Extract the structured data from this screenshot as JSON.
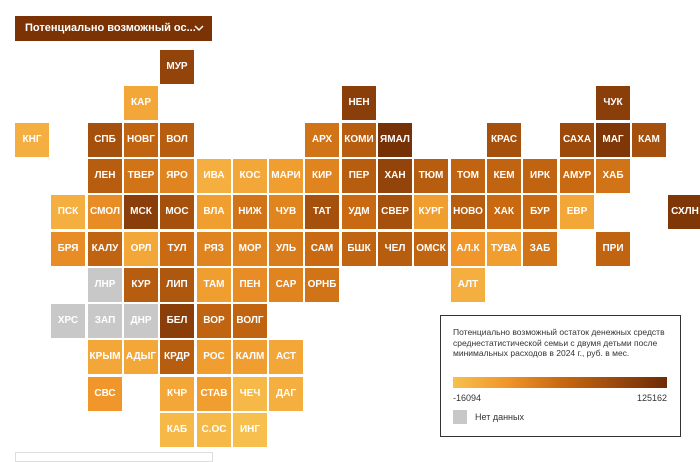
{
  "dropdown": {
    "label": "Потенциально возможный ос...",
    "icon": "chevron-down-icon"
  },
  "colors": {
    "low": "#f7c04e",
    "high": "#6e2b06",
    "nodata": "#c8c8c8"
  },
  "legend": {
    "title": "Потенциально возможный остаток денежных средств среднестатистической семьи с двумя детьми после минимальных расходов в 2024 г., руб. в мес.",
    "min_label": "-16094",
    "max_label": "125162",
    "min": -16094,
    "max": 125162,
    "nodata_label": "Нет данных"
  },
  "map_data": {
    "columns": 19,
    "rows": 11,
    "regions": [
      {
        "label": "МУР",
        "col": 4,
        "row": 0,
        "level": 0.8
      },
      {
        "label": "КАР",
        "col": 3,
        "row": 1,
        "level": 0.15
      },
      {
        "label": "НЕН",
        "col": 9,
        "row": 1,
        "level": 0.85
      },
      {
        "label": "ЧУК",
        "col": 16,
        "row": 1,
        "level": 0.85
      },
      {
        "label": "КНГ",
        "col": 0,
        "row": 2,
        "level": 0.1
      },
      {
        "label": "СПБ",
        "col": 2,
        "row": 2,
        "level": 0.7
      },
      {
        "label": "НОВГ",
        "col": 3,
        "row": 2,
        "level": 0.55
      },
      {
        "label": "ВОЛ",
        "col": 4,
        "row": 2,
        "level": 0.6
      },
      {
        "label": "АРХ",
        "col": 8,
        "row": 2,
        "level": 0.45
      },
      {
        "label": "КОМИ",
        "col": 9,
        "row": 2,
        "level": 0.6
      },
      {
        "label": "ЯМАЛ",
        "col": 10,
        "row": 2,
        "level": 0.95
      },
      {
        "label": "КРАС",
        "col": 13,
        "row": 2,
        "level": 0.7
      },
      {
        "label": "САХА",
        "col": 15,
        "row": 2,
        "level": 0.75
      },
      {
        "label": "МАГ",
        "col": 16,
        "row": 2,
        "level": 0.9
      },
      {
        "label": "КАМ",
        "col": 17,
        "row": 2,
        "level": 0.7
      },
      {
        "label": "ЛЕН",
        "col": 2,
        "row": 3,
        "level": 0.6
      },
      {
        "label": "ТВЕР",
        "col": 3,
        "row": 3,
        "level": 0.45
      },
      {
        "label": "ЯРО",
        "col": 4,
        "row": 3,
        "level": 0.35
      },
      {
        "label": "ИВА",
        "col": 5,
        "row": 3,
        "level": 0.1
      },
      {
        "label": "КОС",
        "col": 6,
        "row": 3,
        "level": 0.15
      },
      {
        "label": "МАРИ",
        "col": 7,
        "row": 3,
        "level": 0.2
      },
      {
        "label": "КИР",
        "col": 8,
        "row": 3,
        "level": 0.35
      },
      {
        "label": "ПЕР",
        "col": 9,
        "row": 3,
        "level": 0.6
      },
      {
        "label": "ХАН",
        "col": 10,
        "row": 3,
        "level": 0.8
      },
      {
        "label": "ТЮМ",
        "col": 11,
        "row": 3,
        "level": 0.6
      },
      {
        "label": "ТОМ",
        "col": 12,
        "row": 3,
        "level": 0.55
      },
      {
        "label": "КЕМ",
        "col": 13,
        "row": 3,
        "level": 0.55
      },
      {
        "label": "ИРК",
        "col": 14,
        "row": 3,
        "level": 0.55
      },
      {
        "label": "АМУР",
        "col": 15,
        "row": 3,
        "level": 0.5
      },
      {
        "label": "ХАБ",
        "col": 16,
        "row": 3,
        "level": 0.45
      },
      {
        "label": "ПСК",
        "col": 1,
        "row": 4,
        "level": 0.1
      },
      {
        "label": "СМОЛ",
        "col": 2,
        "row": 4,
        "level": 0.3
      },
      {
        "label": "МСК",
        "col": 3,
        "row": 4,
        "level": 0.85
      },
      {
        "label": "МОС",
        "col": 4,
        "row": 4,
        "level": 0.7
      },
      {
        "label": "ВЛА",
        "col": 5,
        "row": 4,
        "level": 0.2
      },
      {
        "label": "НИЖ",
        "col": 6,
        "row": 4,
        "level": 0.45
      },
      {
        "label": "ЧУВ",
        "col": 7,
        "row": 4,
        "level": 0.35
      },
      {
        "label": "ТАТ",
        "col": 8,
        "row": 4,
        "level": 0.7
      },
      {
        "label": "УДМ",
        "col": 9,
        "row": 4,
        "level": 0.5
      },
      {
        "label": "СВЕР",
        "col": 10,
        "row": 4,
        "level": 0.7
      },
      {
        "label": "КУРГ",
        "col": 11,
        "row": 4,
        "level": 0.2
      },
      {
        "label": "НОВО",
        "col": 12,
        "row": 4,
        "level": 0.6
      },
      {
        "label": "ХАК",
        "col": 13,
        "row": 4,
        "level": 0.5
      },
      {
        "label": "БУР",
        "col": 14,
        "row": 4,
        "level": 0.5
      },
      {
        "label": "ЕВР",
        "col": 15,
        "row": 4,
        "level": 0.15
      },
      {
        "label": "СХЛН",
        "col": 18,
        "row": 4,
        "level": 0.9
      },
      {
        "label": "БРЯ",
        "col": 1,
        "row": 5,
        "level": 0.3
      },
      {
        "label": "КАЛУ",
        "col": 2,
        "row": 5,
        "level": 0.55
      },
      {
        "label": "ОРЛ",
        "col": 3,
        "row": 5,
        "level": 0.15
      },
      {
        "label": "ТУЛ",
        "col": 4,
        "row": 5,
        "level": 0.5
      },
      {
        "label": "РЯЗ",
        "col": 5,
        "row": 5,
        "level": 0.35
      },
      {
        "label": "МОР",
        "col": 6,
        "row": 5,
        "level": 0.35
      },
      {
        "label": "УЛЬ",
        "col": 7,
        "row": 5,
        "level": 0.4
      },
      {
        "label": "САМ",
        "col": 8,
        "row": 5,
        "level": 0.5
      },
      {
        "label": "БШК",
        "col": 9,
        "row": 5,
        "level": 0.55
      },
      {
        "label": "ЧЕЛ",
        "col": 10,
        "row": 5,
        "level": 0.6
      },
      {
        "label": "ОМСК",
        "col": 11,
        "row": 5,
        "level": 0.55
      },
      {
        "label": "АЛ.К",
        "col": 12,
        "row": 5,
        "level": 0.25
      },
      {
        "label": "ТУВА",
        "col": 13,
        "row": 5,
        "level": 0.2
      },
      {
        "label": "ЗАБ",
        "col": 14,
        "row": 5,
        "level": 0.45
      },
      {
        "label": "ПРИ",
        "col": 16,
        "row": 5,
        "level": 0.55
      },
      {
        "label": "ЛНР",
        "col": 2,
        "row": 6,
        "nodata": true
      },
      {
        "label": "КУР",
        "col": 3,
        "row": 6,
        "level": 0.6
      },
      {
        "label": "ЛИП",
        "col": 4,
        "row": 6,
        "level": 0.65
      },
      {
        "label": "ТАМ",
        "col": 5,
        "row": 6,
        "level": 0.2
      },
      {
        "label": "ПЕН",
        "col": 6,
        "row": 6,
        "level": 0.3
      },
      {
        "label": "САР",
        "col": 7,
        "row": 6,
        "level": 0.35
      },
      {
        "label": "ОРНБ",
        "col": 8,
        "row": 6,
        "level": 0.45
      },
      {
        "label": "АЛТ",
        "col": 12,
        "row": 6,
        "level": 0.1
      },
      {
        "label": "ХРС",
        "col": 1,
        "row": 7,
        "nodata": true
      },
      {
        "label": "ЗАП",
        "col": 2,
        "row": 7,
        "nodata": true
      },
      {
        "label": "ДНР",
        "col": 3,
        "row": 7,
        "nodata": true
      },
      {
        "label": "БЕЛ",
        "col": 4,
        "row": 7,
        "level": 0.85
      },
      {
        "label": "ВОР",
        "col": 5,
        "row": 7,
        "level": 0.55
      },
      {
        "label": "ВОЛГ",
        "col": 6,
        "row": 7,
        "level": 0.55
      },
      {
        "label": "КРЫМ",
        "col": 2,
        "row": 8,
        "level": 0.15
      },
      {
        "label": "АДЫГ",
        "col": 3,
        "row": 8,
        "level": 0.15
      },
      {
        "label": "КРДР",
        "col": 4,
        "row": 8,
        "level": 0.6
      },
      {
        "label": "РОС",
        "col": 5,
        "row": 8,
        "level": 0.2
      },
      {
        "label": "КАЛМ",
        "col": 6,
        "row": 8,
        "level": 0.2
      },
      {
        "label": "АСТ",
        "col": 7,
        "row": 8,
        "level": 0.15
      },
      {
        "label": "СВС",
        "col": 2,
        "row": 9,
        "level": 0.25
      },
      {
        "label": "КЧР",
        "col": 4,
        "row": 9,
        "level": 0.15
      },
      {
        "label": "СТАВ",
        "col": 5,
        "row": 9,
        "level": 0.2
      },
      {
        "label": "ЧЕЧ",
        "col": 6,
        "row": 9,
        "level": 0.05
      },
      {
        "label": "ДАГ",
        "col": 7,
        "row": 9,
        "level": 0.1
      },
      {
        "label": "КАБ",
        "col": 4,
        "row": 10,
        "level": 0.05
      },
      {
        "label": "С.ОС",
        "col": 5,
        "row": 10,
        "level": 0.05
      },
      {
        "label": "ИНГ",
        "col": 6,
        "row": 10,
        "level": 0.0
      }
    ]
  }
}
